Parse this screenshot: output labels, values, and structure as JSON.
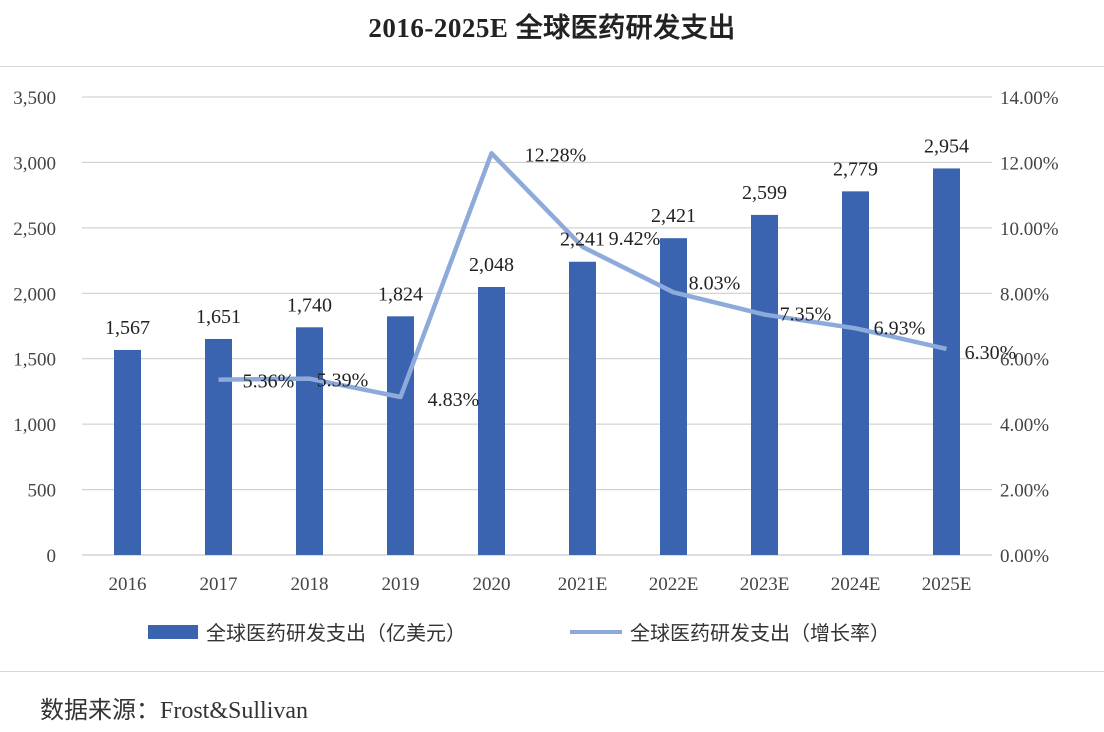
{
  "title": "2016-2025E 全球医药研发支出",
  "source": "数据来源：Frost&Sullivan",
  "colors": {
    "bar": "#3a63b0",
    "line": "#8eaadb",
    "grid": "#c9c9c9"
  },
  "chart_data": {
    "type": "bar+line",
    "categories": [
      "2016",
      "2017",
      "2018",
      "2019",
      "2020",
      "2021E",
      "2022E",
      "2023E",
      "2024E",
      "2025E"
    ],
    "series": [
      {
        "name": "全球医药研发支出（亿美元）",
        "type": "bar",
        "axis": "left",
        "values": [
          1567,
          1651,
          1740,
          1824,
          2048,
          2241,
          2421,
          2599,
          2779,
          2954
        ],
        "labels": [
          "1,567",
          "1,651",
          "1,740",
          "1,824",
          "2,048",
          "2,241",
          "2,421",
          "2,599",
          "2,779",
          "2,954"
        ]
      },
      {
        "name": "全球医药研发支出（增长率）",
        "type": "line",
        "axis": "right",
        "values": [
          null,
          5.36,
          5.39,
          4.83,
          12.28,
          9.42,
          8.03,
          7.35,
          6.93,
          6.3
        ],
        "labels": [
          "",
          "5.36%",
          "5.39%",
          "4.83%",
          "12.28%",
          "9.42%",
          "8.03%",
          "7.35%",
          "6.93%",
          "6.30%"
        ]
      }
    ],
    "y_left": {
      "min": 0,
      "max": 3500,
      "step": 500,
      "tick_labels": [
        "0",
        "500",
        "1,000",
        "1,500",
        "2,000",
        "2,500",
        "3,000",
        "3,500"
      ]
    },
    "y_right": {
      "min": 0,
      "max": 14,
      "step": 2,
      "tick_labels": [
        "0.00%",
        "2.00%",
        "4.00%",
        "6.00%",
        "8.00%",
        "10.00%",
        "12.00%",
        "14.00%"
      ]
    },
    "grid": true,
    "legend_position": "bottom"
  }
}
